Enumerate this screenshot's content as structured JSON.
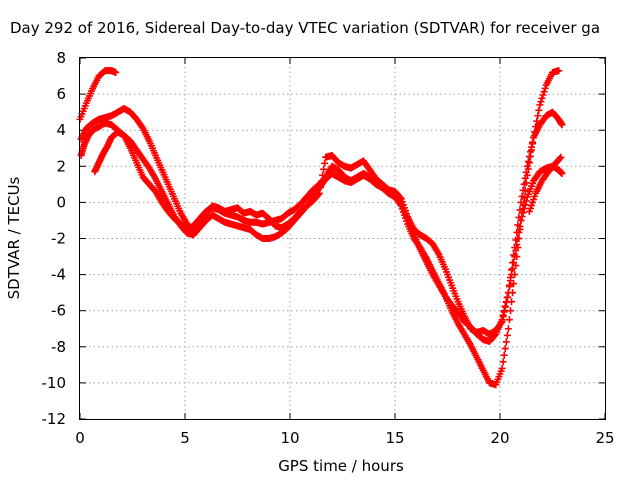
{
  "chart_data": {
    "type": "scatter",
    "title": "Day 292 of 2016, Sidereal Day-to-day VTEC variation (SDTVAR) for receiver ga",
    "xlabel": "GPS time / hours",
    "ylabel": "SDTVAR / TECUs",
    "xlim": [
      0,
      25
    ],
    "ylim": [
      -12,
      8
    ],
    "x_ticks": [
      0,
      5,
      10,
      15,
      20,
      25
    ],
    "y_ticks": [
      -12,
      -10,
      -8,
      -6,
      -4,
      -2,
      0,
      2,
      4,
      6,
      8
    ],
    "x_tick_labels": [
      "0",
      "5",
      "10",
      "15",
      "20",
      "25"
    ],
    "y_tick_labels": [
      "-12",
      "-10",
      "-8",
      "-6",
      "-4",
      "-2",
      "0",
      "2",
      "4",
      "6",
      "8"
    ],
    "grid": true,
    "marker": "+",
    "color": "#ff0000",
    "series": [
      {
        "points": [
          [
            0,
            4.6
          ],
          [
            0.3,
            5.5
          ],
          [
            0.6,
            6.3
          ],
          [
            0.9,
            7.0
          ],
          [
            1.2,
            7.3
          ],
          [
            1.5,
            7.3
          ],
          [
            1.7,
            7.2
          ]
        ]
      },
      {
        "points": [
          [
            0.05,
            3.5
          ],
          [
            0.3,
            4.1
          ],
          [
            0.6,
            4.4
          ],
          [
            0.9,
            4.6
          ],
          [
            1.2,
            4.7
          ],
          [
            1.5,
            4.8
          ],
          [
            1.8,
            5.0
          ],
          [
            2.1,
            5.2
          ],
          [
            2.4,
            5.0
          ],
          [
            2.7,
            4.6
          ],
          [
            3.0,
            4.1
          ],
          [
            3.3,
            3.4
          ],
          [
            3.6,
            2.6
          ],
          [
            3.9,
            1.8
          ],
          [
            4.2,
            1.0
          ],
          [
            4.5,
            0.2
          ],
          [
            4.8,
            -0.6
          ],
          [
            5.1,
            -1.2
          ],
          [
            5.4,
            -1.6
          ],
          [
            5.7,
            -1.2
          ],
          [
            6.0,
            -0.6
          ],
          [
            6.3,
            -0.2
          ],
          [
            6.6,
            -0.3
          ],
          [
            6.9,
            -0.5
          ],
          [
            7.2,
            -0.4
          ],
          [
            7.5,
            -0.3
          ],
          [
            7.8,
            -0.6
          ],
          [
            8.1,
            -0.5
          ],
          [
            8.4,
            -0.7
          ],
          [
            8.7,
            -0.6
          ],
          [
            9.0,
            -0.9
          ],
          [
            9.3,
            -1.3
          ],
          [
            9.6,
            -1.4
          ],
          [
            9.9,
            -1.2
          ],
          [
            10.2,
            -0.9
          ],
          [
            10.5,
            -0.5
          ],
          [
            10.8,
            -0.2
          ],
          [
            11.1,
            0.1
          ],
          [
            11.4,
            0.5
          ],
          [
            11.7,
            2.5
          ],
          [
            12.0,
            2.6
          ],
          [
            12.3,
            2.2
          ],
          [
            12.6,
            2.0
          ],
          [
            12.9,
            1.9
          ],
          [
            13.2,
            2.1
          ],
          [
            13.5,
            2.3
          ],
          [
            13.8,
            1.8
          ],
          [
            14.1,
            1.3
          ],
          [
            14.4,
            1.0
          ],
          [
            14.7,
            0.7
          ],
          [
            15.0,
            0.6
          ],
          [
            15.3,
            0.2
          ],
          [
            15.6,
            -0.8
          ],
          [
            15.9,
            -1.5
          ],
          [
            16.2,
            -1.8
          ],
          [
            16.5,
            -2.0
          ],
          [
            16.8,
            -2.3
          ],
          [
            17.1,
            -2.9
          ],
          [
            17.4,
            -3.7
          ],
          [
            17.7,
            -4.6
          ],
          [
            18.0,
            -5.5
          ],
          [
            18.3,
            -6.3
          ],
          [
            18.6,
            -7.0
          ],
          [
            18.9,
            -7.2
          ],
          [
            19.2,
            -7.1
          ],
          [
            19.5,
            -7.3
          ],
          [
            19.8,
            -7.1
          ],
          [
            20.1,
            -6.6
          ],
          [
            20.4,
            -5.0
          ],
          [
            20.7,
            -2.5
          ],
          [
            21.0,
            0.0
          ],
          [
            21.3,
            2.0
          ],
          [
            21.6,
            3.6
          ],
          [
            21.9,
            4.3
          ],
          [
            22.2,
            4.8
          ],
          [
            22.5,
            5.0
          ],
          [
            22.8,
            4.6
          ],
          [
            22.95,
            4.3
          ]
        ]
      },
      {
        "points": [
          [
            0.05,
            2.6
          ],
          [
            0.2,
            3.2
          ],
          [
            0.4,
            3.7
          ],
          [
            0.6,
            4.0
          ],
          [
            0.9,
            4.2
          ],
          [
            1.2,
            4.4
          ],
          [
            1.5,
            4.3
          ],
          [
            1.8,
            4.0
          ],
          [
            2.1,
            3.7
          ],
          [
            2.4,
            3.4
          ],
          [
            2.7,
            2.9
          ],
          [
            3.0,
            2.4
          ],
          [
            3.3,
            1.9
          ],
          [
            3.6,
            1.3
          ],
          [
            3.9,
            0.6
          ],
          [
            4.2,
            -0.1
          ],
          [
            4.5,
            -0.8
          ],
          [
            4.8,
            -1.3
          ],
          [
            5.1,
            -1.7
          ],
          [
            5.4,
            -1.8
          ],
          [
            5.7,
            -1.4
          ],
          [
            6.0,
            -1.0
          ],
          [
            6.3,
            -0.7
          ],
          [
            6.6,
            -0.9
          ],
          [
            6.9,
            -1.1
          ],
          [
            7.2,
            -1.2
          ],
          [
            7.5,
            -1.3
          ],
          [
            7.8,
            -1.4
          ],
          [
            8.1,
            -1.5
          ],
          [
            8.4,
            -1.8
          ],
          [
            8.7,
            -2.0
          ],
          [
            9.0,
            -2.0
          ],
          [
            9.3,
            -1.9
          ],
          [
            9.6,
            -1.7
          ],
          [
            9.9,
            -1.4
          ],
          [
            10.2,
            -1.0
          ],
          [
            10.5,
            -0.6
          ],
          [
            10.8,
            -0.2
          ],
          [
            11.1,
            0.3
          ],
          [
            11.4,
            0.8
          ],
          [
            11.7,
            1.3
          ],
          [
            12.0,
            1.6
          ],
          [
            12.3,
            1.4
          ],
          [
            12.6,
            1.2
          ],
          [
            12.9,
            1.1
          ],
          [
            13.2,
            1.3
          ],
          [
            13.5,
            1.5
          ],
          [
            13.8,
            1.3
          ],
          [
            14.1,
            1.0
          ],
          [
            14.4,
            0.8
          ],
          [
            14.7,
            0.5
          ],
          [
            15.0,
            0.3
          ],
          [
            15.3,
            -0.2
          ],
          [
            15.6,
            -1.2
          ],
          [
            15.9,
            -2.0
          ],
          [
            16.2,
            -2.5
          ],
          [
            16.5,
            -3.1
          ],
          [
            16.8,
            -3.8
          ],
          [
            17.1,
            -4.5
          ],
          [
            17.4,
            -5.2
          ],
          [
            17.7,
            -6.0
          ],
          [
            18.0,
            -6.7
          ],
          [
            18.3,
            -7.3
          ],
          [
            18.6,
            -7.9
          ],
          [
            18.9,
            -8.6
          ],
          [
            19.2,
            -9.3
          ],
          [
            19.5,
            -10.0
          ],
          [
            19.8,
            -10.1
          ],
          [
            20.1,
            -9.2
          ],
          [
            20.4,
            -7.0
          ],
          [
            20.7,
            -4.0
          ],
          [
            21.0,
            -1.0
          ],
          [
            21.3,
            1.5
          ],
          [
            21.6,
            3.6
          ],
          [
            21.9,
            5.4
          ],
          [
            22.2,
            6.5
          ],
          [
            22.5,
            7.2
          ],
          [
            22.8,
            7.3
          ]
        ]
      },
      {
        "points": [
          [
            0.7,
            1.7
          ],
          [
            0.9,
            2.2
          ],
          [
            1.1,
            2.7
          ],
          [
            1.3,
            3.1
          ],
          [
            1.5,
            3.6
          ],
          [
            1.8,
            3.9
          ],
          [
            2.1,
            3.7
          ],
          [
            2.4,
            3.0
          ],
          [
            2.7,
            2.2
          ],
          [
            3.0,
            1.4
          ],
          [
            3.3,
            1.0
          ],
          [
            3.6,
            0.6
          ],
          [
            3.9,
            0.0
          ],
          [
            4.2,
            -0.5
          ],
          [
            4.5,
            -0.9
          ],
          [
            4.8,
            -1.2
          ],
          [
            5.1,
            -1.5
          ],
          [
            5.4,
            -1.3
          ],
          [
            5.7,
            -0.9
          ],
          [
            6.0,
            -0.5
          ],
          [
            6.3,
            -0.3
          ],
          [
            6.6,
            -0.4
          ],
          [
            6.9,
            -0.6
          ],
          [
            7.2,
            -0.7
          ],
          [
            7.5,
            -0.8
          ],
          [
            7.8,
            -1.0
          ],
          [
            8.1,
            -1.1
          ],
          [
            8.4,
            -1.1
          ],
          [
            8.7,
            -1.2
          ],
          [
            9.0,
            -1.1
          ],
          [
            9.3,
            -1.0
          ],
          [
            9.6,
            -0.9
          ],
          [
            9.9,
            -0.6
          ],
          [
            10.2,
            -0.4
          ],
          [
            10.5,
            -0.1
          ],
          [
            10.8,
            0.3
          ],
          [
            11.1,
            0.7
          ],
          [
            11.4,
            1.0
          ],
          [
            11.7,
            1.4
          ],
          [
            12.0,
            2.0
          ],
          [
            12.3,
            1.8
          ],
          [
            12.6,
            1.4
          ],
          [
            12.9,
            1.2
          ],
          [
            13.2,
            1.4
          ],
          [
            13.5,
            1.6
          ],
          [
            13.8,
            1.4
          ],
          [
            14.1,
            1.2
          ],
          [
            14.4,
            0.9
          ],
          [
            14.7,
            0.6
          ],
          [
            15.0,
            0.4
          ],
          [
            15.3,
            0.0
          ],
          [
            15.6,
            -0.9
          ],
          [
            15.9,
            -1.8
          ],
          [
            16.2,
            -2.6
          ],
          [
            16.5,
            -3.3
          ],
          [
            16.8,
            -4.0
          ],
          [
            17.1,
            -4.6
          ],
          [
            17.4,
            -5.2
          ],
          [
            17.7,
            -5.7
          ],
          [
            18.0,
            -6.1
          ],
          [
            18.3,
            -6.6
          ],
          [
            18.6,
            -6.9
          ],
          [
            18.9,
            -7.3
          ],
          [
            19.2,
            -7.6
          ],
          [
            19.5,
            -7.7
          ],
          [
            19.8,
            -7.3
          ],
          [
            20.1,
            -6.5
          ],
          [
            20.4,
            -5.0
          ],
          [
            20.7,
            -3.0
          ],
          [
            21.0,
            -1.0
          ],
          [
            21.3,
            0.3
          ],
          [
            21.6,
            1.2
          ],
          [
            21.9,
            1.7
          ],
          [
            22.2,
            1.9
          ],
          [
            22.5,
            2.0
          ],
          [
            22.8,
            1.8
          ],
          [
            22.95,
            1.6
          ]
        ]
      },
      {
        "points": [
          [
            21.4,
            -0.5
          ],
          [
            21.7,
            0.5
          ],
          [
            22.0,
            1.2
          ],
          [
            22.3,
            1.7
          ],
          [
            22.6,
            2.1
          ],
          [
            22.9,
            2.5
          ]
        ]
      }
    ]
  }
}
